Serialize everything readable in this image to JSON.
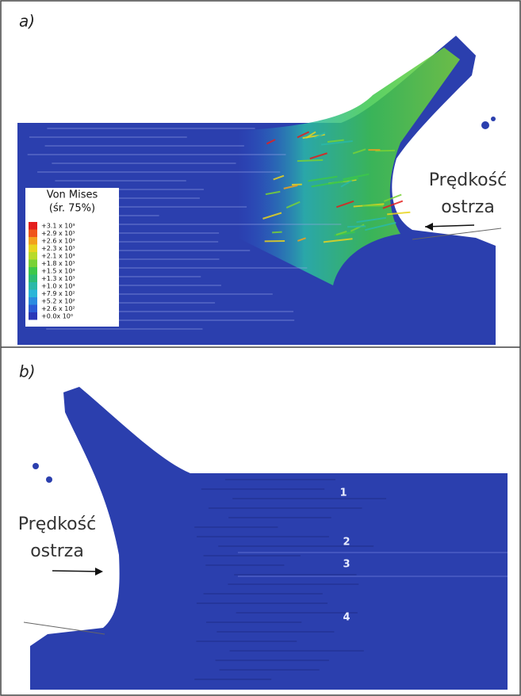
{
  "panels": [
    {
      "label": "a)",
      "legend": {
        "title": [
          "Von Mises",
          "(śr. 75%)"
        ],
        "items": [
          {
            "label": "+3.1 x 10³",
            "color": "#e41e1c"
          },
          {
            "label": "+2.9 x 10³",
            "color": "#f0541a"
          },
          {
            "label": "+2.6 x 10³",
            "color": "#f3a01c"
          },
          {
            "label": "+2.3 x 10³",
            "color": "#e8d41e"
          },
          {
            "label": "+2.1 x 10³",
            "color": "#b8da28"
          },
          {
            "label": "+1.8 x 10³",
            "color": "#78d236"
          },
          {
            "label": "+1.5 x 10³",
            "color": "#3cc84a"
          },
          {
            "label": "+1.3 x 10³",
            "color": "#2cbd74"
          },
          {
            "label": "+1.0 x 10³",
            "color": "#2ab9a8"
          },
          {
            "label": "+7.9 x 10²",
            "color": "#2ab6d8"
          },
          {
            "label": "+5.2 x 10²",
            "color": "#2a8ce0"
          },
          {
            "label": "+2.6 x 10²",
            "color": "#2a5cd6"
          },
          {
            "label": "+0.0x 10⁰",
            "color": "#2a38b8"
          }
        ]
      },
      "annotation": [
        "Prędkość",
        "ostrza"
      ]
    },
    {
      "label": "b)",
      "annotation": [
        "Prędkość",
        "ostrza"
      ],
      "zones": [
        "1",
        "2",
        "3",
        "4"
      ]
    }
  ]
}
